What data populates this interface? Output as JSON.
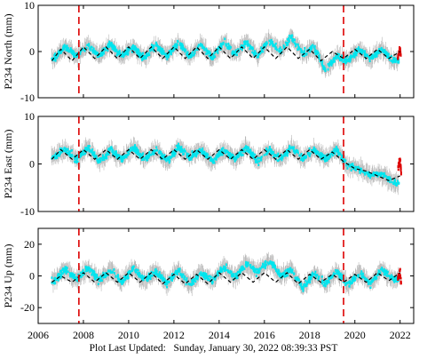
{
  "footer": {
    "label": "Plot Last Updated:",
    "timestamp": "Sunday, January 30, 2022 08:39:33 PST"
  },
  "colors": {
    "data_points": "#00e5ee",
    "error_bars": "#b8b8b8",
    "recent_points": "#dd0000",
    "model_line": "#000000",
    "offset_lines": "#dd0000"
  },
  "chart_data": [
    {
      "type": "scatter",
      "ylabel": "P234 North (mm)",
      "xlim": [
        2006,
        2022.6
      ],
      "ylim": [
        -10,
        10
      ],
      "yticks": [
        -10,
        0,
        10
      ],
      "xticks": [
        2006,
        2008,
        2010,
        2012,
        2014,
        2016,
        2018,
        2020,
        2022
      ],
      "xtick_labels_shown": false,
      "offset_lines_x": [
        2007.8,
        2019.5
      ],
      "series": [
        {
          "type": "line",
          "role": "model",
          "style": "dashed",
          "x": [
            2006.6,
            2007.0,
            2007.5,
            2008.0,
            2008.5,
            2009.0,
            2009.5,
            2010.0,
            2010.5,
            2011.0,
            2011.5,
            2012.0,
            2012.5,
            2013.0,
            2013.5,
            2014.0,
            2014.5,
            2015.0,
            2015.5,
            2016.0,
            2016.5,
            2017.0,
            2017.5,
            2018.0,
            2018.5,
            2019.0,
            2019.5,
            2020.0,
            2020.5,
            2021.0,
            2021.5,
            2022.0
          ],
          "y": [
            -2.0,
            0.5,
            -2.0,
            1.0,
            -1.5,
            1.0,
            -1.5,
            1.0,
            -1.5,
            1.0,
            -1.5,
            1.0,
            -1.5,
            1.0,
            -1.5,
            1.0,
            -1.5,
            1.0,
            -1.5,
            1.0,
            -1.5,
            1.0,
            -1.5,
            0.5,
            -2.0,
            0.0,
            -1.5,
            0.5,
            -1.5,
            0.5,
            -1.5,
            0.0
          ]
        },
        {
          "type": "scatter",
          "role": "daily",
          "x": [
            2006.7,
            2007.2,
            2007.7,
            2008.2,
            2008.7,
            2009.2,
            2009.7,
            2010.2,
            2010.7,
            2011.2,
            2011.7,
            2012.2,
            2012.7,
            2013.2,
            2013.7,
            2014.2,
            2014.7,
            2015.2,
            2015.7,
            2016.2,
            2016.7,
            2017.2,
            2017.7,
            2018.2,
            2018.7,
            2019.2,
            2019.7,
            2020.2,
            2020.7,
            2021.2,
            2021.7
          ],
          "y": [
            -1.5,
            1.0,
            -1.0,
            1.5,
            -1.0,
            1.5,
            -1.0,
            1.0,
            -1.5,
            1.5,
            -1.0,
            2.0,
            -1.0,
            1.5,
            -1.5,
            2.0,
            -0.5,
            2.0,
            -1.0,
            2.5,
            0.0,
            3.0,
            -0.5,
            1.0,
            -4.0,
            -1.0,
            -2.0,
            0.5,
            -1.5,
            0.5,
            -2.0
          ]
        },
        {
          "type": "scatter",
          "role": "recent",
          "x": [
            2021.9,
            2022.0,
            2022.05
          ],
          "y": [
            -1.0,
            0.5,
            -2.0
          ]
        }
      ]
    },
    {
      "type": "scatter",
      "ylabel": "P234 East (mm)",
      "xlim": [
        2006,
        2022.6
      ],
      "ylim": [
        -10,
        10
      ],
      "yticks": [
        -10,
        0,
        10
      ],
      "xticks": [
        2006,
        2008,
        2010,
        2012,
        2014,
        2016,
        2018,
        2020,
        2022
      ],
      "xtick_labels_shown": false,
      "offset_lines_x": [
        2007.8,
        2019.5
      ],
      "series": [
        {
          "type": "line",
          "role": "model",
          "style": "dashed",
          "x": [
            2006.6,
            2007.0,
            2007.5,
            2008.0,
            2008.5,
            2009.0,
            2009.5,
            2010.0,
            2010.5,
            2011.0,
            2011.5,
            2012.0,
            2012.5,
            2013.0,
            2013.5,
            2014.0,
            2014.5,
            2015.0,
            2015.5,
            2016.0,
            2016.5,
            2017.0,
            2017.5,
            2018.0,
            2018.5,
            2019.0,
            2019.5,
            2020.0,
            2020.5,
            2021.0,
            2021.5,
            2022.0
          ],
          "y": [
            1.0,
            3.0,
            1.0,
            3.0,
            1.0,
            3.0,
            1.0,
            3.0,
            1.0,
            3.0,
            1.0,
            3.0,
            1.0,
            3.0,
            1.0,
            3.0,
            1.0,
            3.0,
            1.0,
            3.0,
            1.0,
            3.0,
            1.0,
            3.0,
            1.0,
            2.5,
            0.5,
            -1.0,
            -1.5,
            -2.5,
            -3.5,
            -2.5
          ]
        },
        {
          "type": "scatter",
          "role": "daily",
          "x": [
            2006.7,
            2007.2,
            2007.7,
            2008.2,
            2008.7,
            2009.2,
            2009.7,
            2010.2,
            2010.7,
            2011.2,
            2011.7,
            2012.2,
            2012.7,
            2013.2,
            2013.7,
            2014.2,
            2014.7,
            2015.2,
            2015.7,
            2016.2,
            2016.7,
            2017.2,
            2017.7,
            2018.2,
            2018.7,
            2019.2,
            2019.7,
            2020.2,
            2020.7,
            2021.2,
            2021.7
          ],
          "y": [
            1.5,
            3.0,
            1.0,
            3.5,
            0.5,
            3.0,
            1.0,
            3.5,
            1.0,
            3.0,
            0.5,
            3.5,
            1.5,
            3.0,
            0.5,
            3.0,
            1.0,
            3.5,
            0.5,
            3.0,
            1.0,
            3.5,
            1.0,
            3.0,
            1.0,
            3.0,
            -0.5,
            -1.0,
            -2.5,
            -2.0,
            -4.0
          ]
        },
        {
          "type": "scatter",
          "role": "recent",
          "x": [
            2021.9,
            2022.0,
            2022.05
          ],
          "y": [
            -1.0,
            1.0,
            -2.0
          ]
        }
      ]
    },
    {
      "type": "scatter",
      "ylabel": "P234 Up (mm)",
      "xlim": [
        2006,
        2022.6
      ],
      "ylim": [
        -30,
        30
      ],
      "yticks": [
        -20,
        0,
        20
      ],
      "xticks": [
        2006,
        2008,
        2010,
        2012,
        2014,
        2016,
        2018,
        2020,
        2022
      ],
      "xtick_labels": [
        "2006",
        "2008",
        "2010",
        "2012",
        "2014",
        "2016",
        "2018",
        "2020",
        "2022"
      ],
      "xtick_labels_shown": true,
      "offset_lines_x": [
        2007.8,
        2019.5
      ],
      "series": [
        {
          "type": "line",
          "role": "model",
          "style": "dashed",
          "x": [
            2006.6,
            2007.0,
            2007.5,
            2008.0,
            2008.5,
            2009.0,
            2009.5,
            2010.0,
            2010.5,
            2011.0,
            2011.5,
            2012.0,
            2012.5,
            2013.0,
            2013.5,
            2014.0,
            2014.5,
            2015.0,
            2015.5,
            2016.0,
            2016.5,
            2017.0,
            2017.5,
            2018.0,
            2018.5,
            2019.0,
            2019.5,
            2020.0,
            2020.5,
            2021.0,
            2021.5,
            2022.0
          ],
          "y": [
            -4.0,
            0.0,
            -4.0,
            2.0,
            -4.0,
            2.0,
            -4.0,
            2.0,
            -4.0,
            2.0,
            -5.0,
            1.0,
            -5.0,
            1.0,
            -5.0,
            2.0,
            -4.0,
            2.0,
            -4.0,
            2.0,
            -4.0,
            2.0,
            -5.0,
            1.0,
            -4.0,
            1.0,
            -4.0,
            1.0,
            -4.0,
            2.0,
            -3.0,
            2.0
          ]
        },
        {
          "type": "scatter",
          "role": "daily",
          "x": [
            2006.7,
            2007.2,
            2007.7,
            2008.2,
            2008.7,
            2009.2,
            2009.7,
            2010.2,
            2010.7,
            2011.2,
            2011.7,
            2012.2,
            2012.7,
            2013.2,
            2013.7,
            2014.2,
            2014.7,
            2015.2,
            2015.7,
            2016.2,
            2016.7,
            2017.2,
            2017.7,
            2018.2,
            2018.7,
            2019.2,
            2019.7,
            2020.2,
            2020.7,
            2021.2,
            2021.7
          ],
          "y": [
            -3.0,
            4.0,
            -2.0,
            5.0,
            -3.0,
            4.0,
            -4.0,
            5.0,
            -3.0,
            3.0,
            -5.0,
            4.0,
            -6.0,
            2.0,
            -3.0,
            6.0,
            -1.0,
            8.0,
            2.0,
            10.0,
            0.0,
            4.0,
            -8.0,
            2.0,
            -5.0,
            3.0,
            -6.0,
            2.0,
            -5.0,
            4.0,
            -2.0
          ]
        },
        {
          "type": "scatter",
          "role": "recent",
          "x": [
            2021.9,
            2022.0,
            2022.05
          ],
          "y": [
            -2.0,
            3.0,
            -6.0
          ]
        }
      ]
    }
  ]
}
